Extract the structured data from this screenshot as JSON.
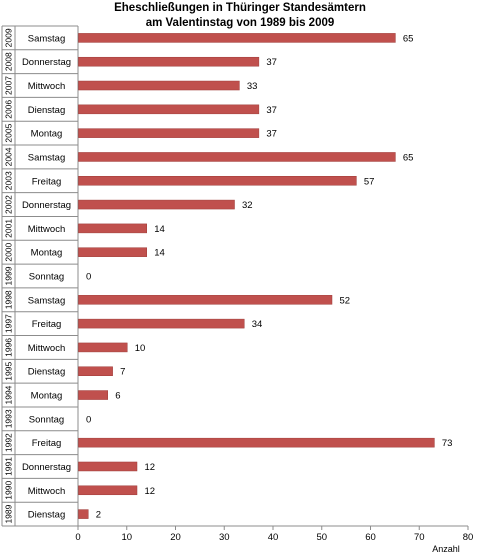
{
  "chart_data": {
    "type": "bar",
    "orientation": "horizontal",
    "title_lines": [
      "Eheschließungen in Thüringer Standesämtern",
      "am Valentinstag von 1989 bis 2009"
    ],
    "xlabel": "Anzahl",
    "xlim": [
      0,
      80
    ],
    "xticks": [
      "0",
      "10",
      "20",
      "30",
      "40",
      "50",
      "60",
      "70",
      "80"
    ],
    "bar_color": "#c0504d",
    "rows": [
      {
        "year": "2009",
        "day": "Samstag",
        "value": 65
      },
      {
        "year": "2008",
        "day": "Donnerstag",
        "value": 37
      },
      {
        "year": "2007",
        "day": "Mittwoch",
        "value": 33
      },
      {
        "year": "2006",
        "day": "Dienstag",
        "value": 37
      },
      {
        "year": "2005",
        "day": "Montag",
        "value": 37
      },
      {
        "year": "2004",
        "day": "Samstag",
        "value": 65
      },
      {
        "year": "2003",
        "day": "Freitag",
        "value": 57
      },
      {
        "year": "2002",
        "day": "Donnerstag",
        "value": 32
      },
      {
        "year": "2001",
        "day": "Mittwoch",
        "value": 14
      },
      {
        "year": "2000",
        "day": "Montag",
        "value": 14
      },
      {
        "year": "1999",
        "day": "Sonntag",
        "value": 0
      },
      {
        "year": "1998",
        "day": "Samstag",
        "value": 52
      },
      {
        "year": "1997",
        "day": "Freitag",
        "value": 34
      },
      {
        "year": "1996",
        "day": "Mittwoch",
        "value": 10
      },
      {
        "year": "1995",
        "day": "Dienstag",
        "value": 7
      },
      {
        "year": "1994",
        "day": "Montag",
        "value": 6
      },
      {
        "year": "1993",
        "day": "Sonntag",
        "value": 0
      },
      {
        "year": "1992",
        "day": "Freitag",
        "value": 73
      },
      {
        "year": "1991",
        "day": "Donnerstag",
        "value": 12
      },
      {
        "year": "1990",
        "day": "Mittwoch",
        "value": 12
      },
      {
        "year": "1989",
        "day": "Dienstag",
        "value": 2
      }
    ]
  }
}
